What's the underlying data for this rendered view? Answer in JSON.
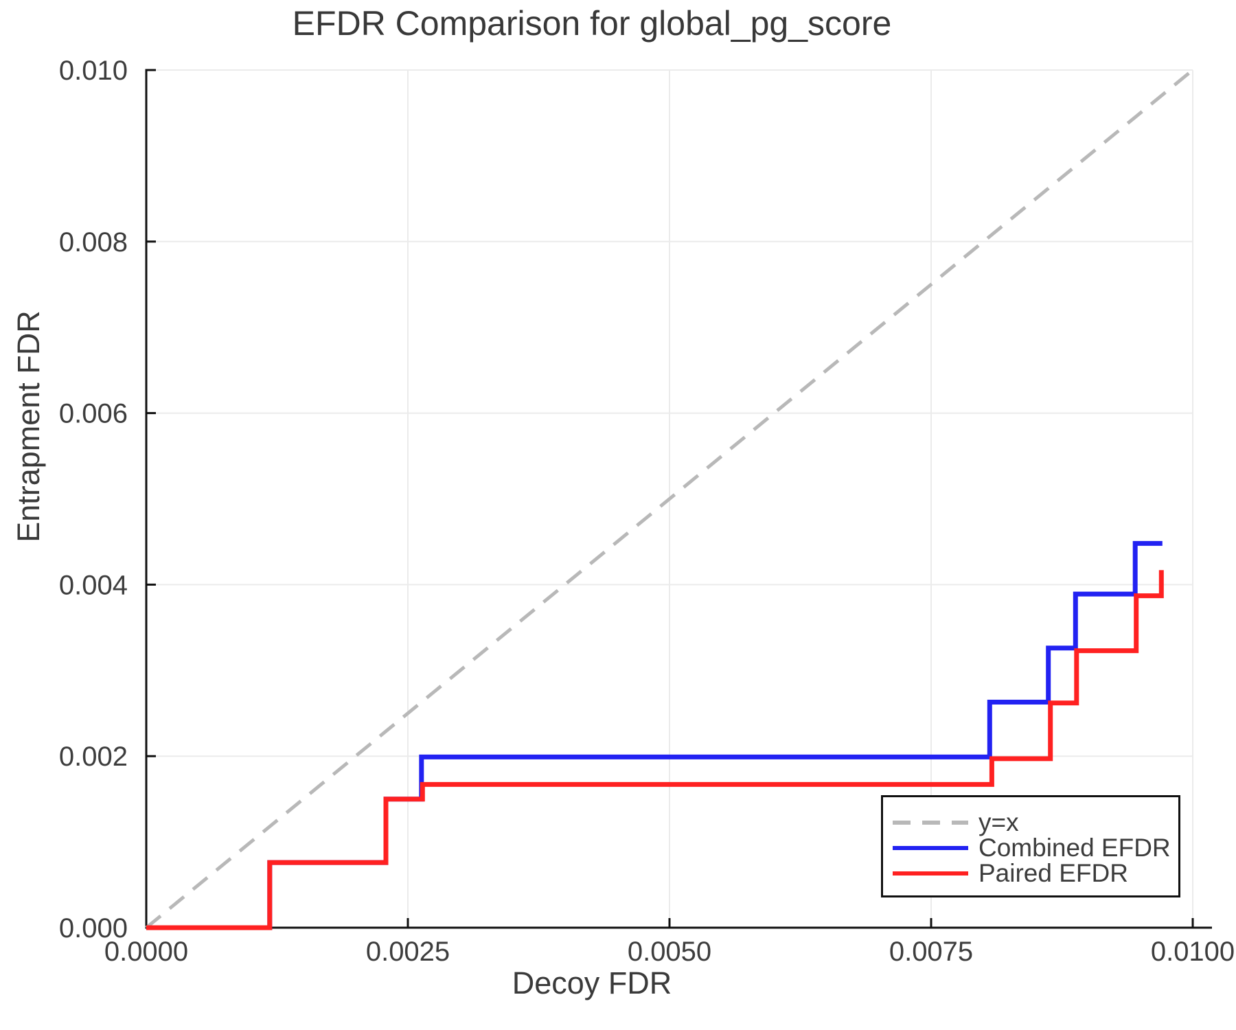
{
  "chart": {
    "title": "EFDR Comparison for global_pg_score",
    "xlabel": "Decoy FDR",
    "ylabel": "Entrapment FDR"
  },
  "legend": {
    "entries": [
      {
        "label": "y=x",
        "style": "dashed",
        "color": "#b8b8b8"
      },
      {
        "label": "Combined EFDR",
        "style": "solid",
        "color": "#2222f2"
      },
      {
        "label": "Paired EFDR",
        "style": "solid",
        "color": "#ff2121"
      }
    ]
  },
  "chart_data": {
    "type": "line",
    "title": "EFDR Comparison for global_pg_score",
    "xlabel": "Decoy FDR",
    "ylabel": "Entrapment FDR",
    "xlim": [
      0.0,
      0.01
    ],
    "ylim": [
      0.0,
      0.01
    ],
    "grid": true,
    "legend_position": "bottom-right",
    "x_ticks": {
      "values": [
        0.0,
        0.0025,
        0.005,
        0.0075,
        0.01
      ],
      "labels": [
        "0.0000",
        "0.0025",
        "0.0050",
        "0.0075",
        "0.0100"
      ]
    },
    "y_ticks": {
      "values": [
        0.0,
        0.002,
        0.004,
        0.006,
        0.008,
        0.01
      ],
      "labels": [
        "0.000",
        "0.002",
        "0.004",
        "0.006",
        "0.008",
        "0.010"
      ]
    },
    "reference_line": {
      "name": "y=x",
      "from": [
        0.0,
        0.0
      ],
      "to": [
        0.01,
        0.01
      ],
      "color": "#b8b8b8",
      "dashed": true
    },
    "series": [
      {
        "name": "Combined EFDR",
        "color": "#2222f2",
        "step_points": [
          [
            0.0,
            0.0
          ],
          [
            0.00118,
            0.0
          ],
          [
            0.00118,
            0.00076
          ],
          [
            0.00229,
            0.00076
          ],
          [
            0.00229,
            0.0015
          ],
          [
            0.00263,
            0.0015
          ],
          [
            0.00263,
            0.00199
          ],
          [
            0.00806,
            0.00199
          ],
          [
            0.00806,
            0.00263
          ],
          [
            0.00862,
            0.00263
          ],
          [
            0.00862,
            0.00326
          ],
          [
            0.00888,
            0.00326
          ],
          [
            0.00888,
            0.00389
          ],
          [
            0.00945,
            0.00389
          ],
          [
            0.00945,
            0.00448
          ],
          [
            0.00971,
            0.00448
          ]
        ]
      },
      {
        "name": "Paired EFDR",
        "color": "#ff2121",
        "step_points": [
          [
            0.0,
            0.0
          ],
          [
            0.00118,
            0.0
          ],
          [
            0.00118,
            0.00076
          ],
          [
            0.00229,
            0.00076
          ],
          [
            0.00229,
            0.0015
          ],
          [
            0.00264,
            0.0015
          ],
          [
            0.00264,
            0.00167
          ],
          [
            0.00808,
            0.00167
          ],
          [
            0.00808,
            0.00197
          ],
          [
            0.00864,
            0.00197
          ],
          [
            0.00864,
            0.00262
          ],
          [
            0.00889,
            0.00262
          ],
          [
            0.00889,
            0.00323
          ],
          [
            0.00946,
            0.00323
          ],
          [
            0.00946,
            0.00387
          ],
          [
            0.0097,
            0.00387
          ],
          [
            0.0097,
            0.00417
          ]
        ]
      }
    ]
  }
}
